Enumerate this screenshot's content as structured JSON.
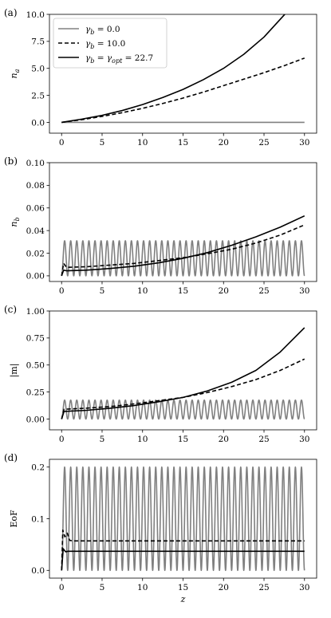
{
  "legend": [
    {
      "series": 0,
      "label": "γb = 0.0"
    },
    {
      "series": 1,
      "label": "γb = 10.0"
    },
    {
      "series": 2,
      "label": "γb = γopt = 22.7"
    }
  ],
  "series_styles": [
    {
      "color": "#808080",
      "dash": "none",
      "width": 1.6
    },
    {
      "color": "#000000",
      "dash": "5,3",
      "width": 1.6
    },
    {
      "color": "#000000",
      "dash": "none",
      "width": 1.6
    }
  ],
  "chart_data": [
    {
      "type": "line",
      "panel_label": "(a)",
      "xlabel": "",
      "ylabel": "na",
      "xlim": [
        -1.5,
        31.5
      ],
      "ylim": [
        -1.0,
        10.0
      ],
      "xticks": [
        0,
        5,
        10,
        15,
        20,
        25,
        30
      ],
      "xtick_labels": [
        "0",
        "5",
        "10",
        "15",
        "20",
        "25",
        "30"
      ],
      "yticks": [
        0,
        2.5,
        5,
        7.5,
        10
      ],
      "ytick_labels": [
        "0.0",
        "2.5",
        "5.0",
        "7.5",
        "10.0"
      ],
      "legend_position": "top-left",
      "series": [
        {
          "x": [
            0,
            5,
            10,
            15,
            20,
            25,
            30
          ],
          "y": [
            0,
            0,
            0,
            0,
            0,
            0,
            0
          ]
        },
        {
          "x": [
            0,
            2.5,
            5,
            7.5,
            10,
            12.5,
            15,
            17.5,
            20,
            22.5,
            25,
            27.5,
            30
          ],
          "y": [
            0,
            0.25,
            0.55,
            0.9,
            1.3,
            1.75,
            2.25,
            2.8,
            3.4,
            4.0,
            4.6,
            5.25,
            5.95
          ]
        },
        {
          "x": [
            0,
            2.5,
            5,
            7.5,
            10,
            12.5,
            15,
            17.5,
            20,
            22.5,
            25,
            27.5,
            28.5
          ],
          "y": [
            0,
            0.3,
            0.65,
            1.1,
            1.65,
            2.3,
            3.05,
            3.95,
            5.0,
            6.3,
            7.9,
            9.95,
            10.8
          ]
        }
      ]
    },
    {
      "type": "line",
      "panel_label": "(b)",
      "xlabel": "",
      "ylabel": "nb",
      "xlim": [
        -1.5,
        31.5
      ],
      "ylim": [
        -0.005,
        0.1
      ],
      "xticks": [
        0,
        5,
        10,
        15,
        20,
        25,
        30
      ],
      "xtick_labels": [
        "0",
        "5",
        "10",
        "15",
        "20",
        "25",
        "30"
      ],
      "yticks": [
        0,
        0.02,
        0.04,
        0.06,
        0.08,
        0.1
      ],
      "ytick_labels": [
        "0.00",
        "0.02",
        "0.04",
        "0.06",
        "0.08",
        "0.10"
      ],
      "series": [
        {
          "x": [
            0,
            30
          ],
          "y": [
            0,
            0
          ],
          "oscillation": {
            "periods": 40,
            "min": 0.0,
            "max": 0.031
          }
        },
        {
          "x": [
            0,
            0.25,
            0.6,
            3,
            6,
            9,
            12,
            15,
            18,
            21,
            24,
            27,
            30
          ],
          "y": [
            0,
            0.011,
            0.0075,
            0.008,
            0.0095,
            0.011,
            0.0135,
            0.016,
            0.0195,
            0.0235,
            0.029,
            0.036,
            0.045
          ]
        },
        {
          "x": [
            0,
            0.25,
            0.6,
            3,
            6,
            9,
            12,
            15,
            18,
            21,
            24,
            27,
            30
          ],
          "y": [
            0,
            0.005,
            0.0045,
            0.005,
            0.0065,
            0.0085,
            0.0115,
            0.0155,
            0.0205,
            0.027,
            0.0345,
            0.043,
            0.053
          ]
        }
      ]
    },
    {
      "type": "line",
      "panel_label": "(c)",
      "xlabel": "",
      "ylabel": "|m|",
      "xlim": [
        -1.5,
        31.5
      ],
      "ylim": [
        -0.1,
        1.0
      ],
      "xticks": [
        0,
        5,
        10,
        15,
        20,
        25,
        30
      ],
      "xtick_labels": [
        "0",
        "5",
        "10",
        "15",
        "20",
        "25",
        "30"
      ],
      "yticks": [
        0,
        0.25,
        0.5,
        0.75,
        1.0
      ],
      "ytick_labels": [
        "0.00",
        "0.25",
        "0.50",
        "0.75",
        "1.00"
      ],
      "series": [
        {
          "x": [
            0,
            30
          ],
          "y": [
            0,
            0
          ],
          "oscillation": {
            "periods": 40,
            "min": 0.0,
            "max": 0.175
          }
        },
        {
          "x": [
            0,
            0.3,
            3,
            6,
            9,
            12,
            15,
            18,
            21,
            24,
            27,
            30
          ],
          "y": [
            0,
            0.09,
            0.1,
            0.115,
            0.14,
            0.17,
            0.2,
            0.245,
            0.3,
            0.365,
            0.45,
            0.555
          ]
        },
        {
          "x": [
            0,
            0.3,
            3,
            6,
            9,
            12,
            15,
            18,
            21,
            24,
            27,
            30
          ],
          "y": [
            0,
            0.07,
            0.08,
            0.1,
            0.125,
            0.16,
            0.2,
            0.26,
            0.34,
            0.45,
            0.62,
            0.845
          ]
        }
      ]
    },
    {
      "type": "line",
      "panel_label": "(d)",
      "xlabel": "z",
      "ylabel": "EoF",
      "xlim": [
        -1.5,
        31.5
      ],
      "ylim": [
        -0.015,
        0.215
      ],
      "xticks": [
        0,
        5,
        10,
        15,
        20,
        25,
        30
      ],
      "xtick_labels": [
        "0",
        "5",
        "10",
        "15",
        "20",
        "25",
        "30"
      ],
      "yticks": [
        0,
        0.1,
        0.2
      ],
      "ytick_labels": [
        "0.0",
        "0.1",
        "0.2"
      ],
      "series": [
        {
          "x": [
            0,
            30
          ],
          "y": [
            0,
            0
          ],
          "oscillation": {
            "periods": 40,
            "min": 0.0,
            "max": 0.2
          }
        },
        {
          "x": [
            0,
            0.15,
            0.4,
            0.7,
            1.0,
            1.5,
            30
          ],
          "y": [
            0,
            0.078,
            0.065,
            0.072,
            0.058,
            0.057,
            0.057
          ]
        },
        {
          "x": [
            0,
            0.2,
            0.5,
            0.8,
            30
          ],
          "y": [
            0,
            0.042,
            0.036,
            0.037,
            0.037
          ]
        }
      ]
    }
  ]
}
